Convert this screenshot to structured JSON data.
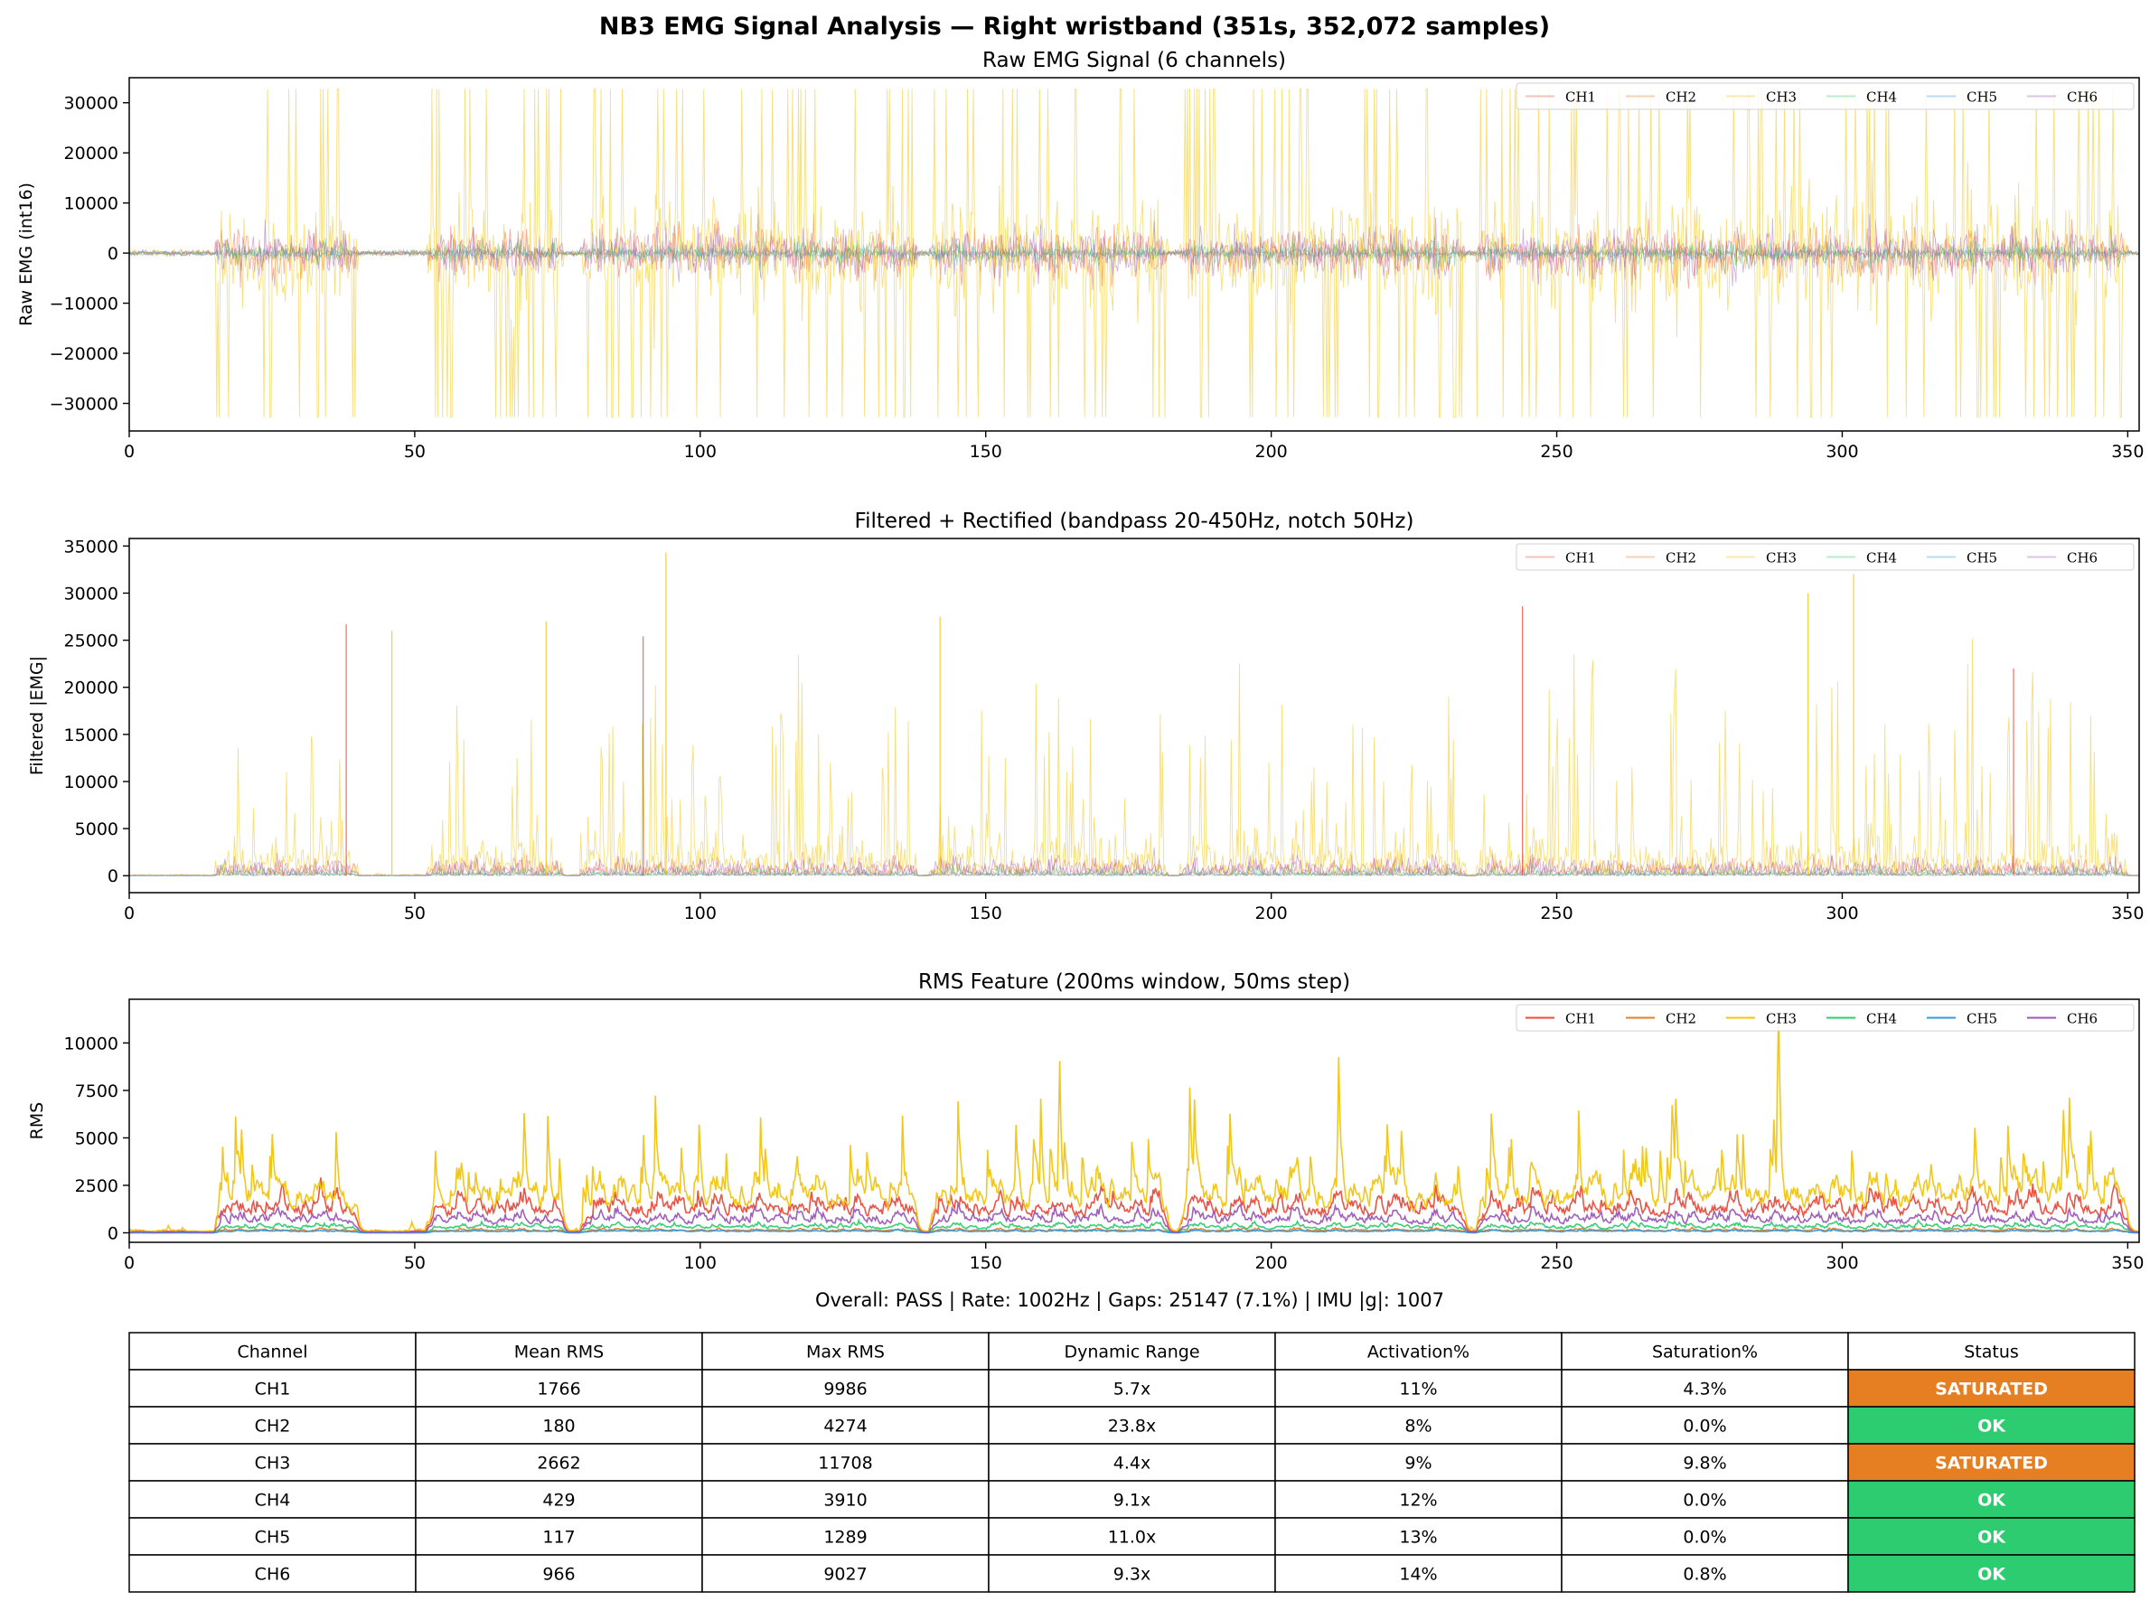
{
  "suptitle": "NB3 EMG Signal Analysis — Right wristband (351s, 352,072 samples)",
  "colors": {
    "CH1": "#e84c3d",
    "CH2": "#e67e22",
    "CH3": "#f1c40f",
    "CH4": "#2ecc71",
    "CH5": "#3498db",
    "CH6": "#9b59b6",
    "saturated": "#e67e22",
    "ok": "#2ecc71"
  },
  "chart_data": [
    {
      "type": "line",
      "title": "Raw EMG Signal (6 channels)",
      "ylabel": "Raw EMG (int16)",
      "xlabel": "",
      "xlim": [
        0,
        352
      ],
      "ylim": [
        -35500,
        35000
      ],
      "xticks": [
        0,
        50,
        100,
        150,
        200,
        250,
        300,
        350
      ],
      "yticks": [
        -30000,
        -20000,
        -10000,
        0,
        10000,
        20000,
        30000
      ],
      "ytick_labels": [
        "−30000",
        "−20000",
        "−10000",
        "0",
        "10000",
        "20000",
        "30000"
      ],
      "legend": "top-right",
      "legend_entries": [
        "CH1",
        "CH2",
        "CH3",
        "CH4",
        "CH5",
        "CH6"
      ],
      "signal": "raw",
      "activity_bursts": [
        [
          15,
          40
        ],
        [
          52,
          76
        ],
        [
          79,
          138
        ],
        [
          140,
          182
        ],
        [
          184,
          234
        ],
        [
          236,
          350
        ]
      ]
    },
    {
      "type": "line",
      "title": "Filtered + Rectified (bandpass 20-450Hz, notch 50Hz)",
      "ylabel": "Filtered |EMG|",
      "xlabel": "",
      "xlim": [
        0,
        352
      ],
      "ylim": [
        -1800,
        35800
      ],
      "xticks": [
        0,
        50,
        100,
        150,
        200,
        250,
        300,
        350
      ],
      "yticks": [
        0,
        5000,
        10000,
        15000,
        20000,
        25000,
        30000,
        35000
      ],
      "ytick_labels": [
        "0",
        "5000",
        "10000",
        "15000",
        "20000",
        "25000",
        "30000",
        "35000"
      ],
      "legend": "top-right",
      "legend_entries": [
        "CH1",
        "CH2",
        "CH3",
        "CH4",
        "CH5",
        "CH6"
      ],
      "signal": "filtered",
      "peaks": [
        [
          38,
          26700
        ],
        [
          46,
          26000
        ],
        [
          73,
          27000
        ],
        [
          90,
          25400
        ],
        [
          94,
          34300
        ],
        [
          142,
          27500
        ],
        [
          244,
          28600
        ],
        [
          294,
          30000
        ],
        [
          302,
          32000
        ],
        [
          330,
          22000
        ]
      ]
    },
    {
      "type": "line",
      "title": "RMS Feature (200ms window, 50ms step)",
      "ylabel": "RMS",
      "xlabel": "",
      "xlim": [
        0,
        352
      ],
      "ylim": [
        -500,
        12300
      ],
      "xticks": [
        0,
        50,
        100,
        150,
        200,
        250,
        300,
        350
      ],
      "yticks": [
        0,
        2500,
        5000,
        7500,
        10000
      ],
      "ytick_labels": [
        "0",
        "2500",
        "5000",
        "7500",
        "10000"
      ],
      "legend": "top-right",
      "legend_entries": [
        "CH1",
        "CH2",
        "CH3",
        "CH4",
        "CH5",
        "CH6"
      ],
      "signal": "rms",
      "series": [
        {
          "name": "CH1",
          "mean_rms": 1766,
          "max_rms": 9986
        },
        {
          "name": "CH2",
          "mean_rms": 180,
          "max_rms": 4274
        },
        {
          "name": "CH3",
          "mean_rms": 2662,
          "max_rms": 11708
        },
        {
          "name": "CH4",
          "mean_rms": 429,
          "max_rms": 3910
        },
        {
          "name": "CH5",
          "mean_rms": 117,
          "max_rms": 1289
        },
        {
          "name": "CH6",
          "mean_rms": 966,
          "max_rms": 9027
        }
      ]
    },
    {
      "type": "table",
      "title": "Overall: PASS | Rate: 1002Hz | Gaps: 25147 (7.1%) | IMU |g|: 1007",
      "columns": [
        "Channel",
        "Mean RMS",
        "Max RMS",
        "Dynamic Range",
        "Activation%",
        "Saturation%",
        "Status"
      ],
      "rows": [
        [
          "CH1",
          "1766",
          "9986",
          "5.7x",
          "11%",
          "4.3%",
          "SATURATED"
        ],
        [
          "CH2",
          "180",
          "4274",
          "23.8x",
          "8%",
          "0.0%",
          "OK"
        ],
        [
          "CH3",
          "2662",
          "11708",
          "4.4x",
          "9%",
          "9.8%",
          "SATURATED"
        ],
        [
          "CH4",
          "429",
          "3910",
          "9.1x",
          "12%",
          "0.0%",
          "OK"
        ],
        [
          "CH5",
          "117",
          "1289",
          "11.0x",
          "13%",
          "0.0%",
          "OK"
        ],
        [
          "CH6",
          "966",
          "9027",
          "9.3x",
          "14%",
          "0.8%",
          "OK"
        ]
      ]
    }
  ]
}
